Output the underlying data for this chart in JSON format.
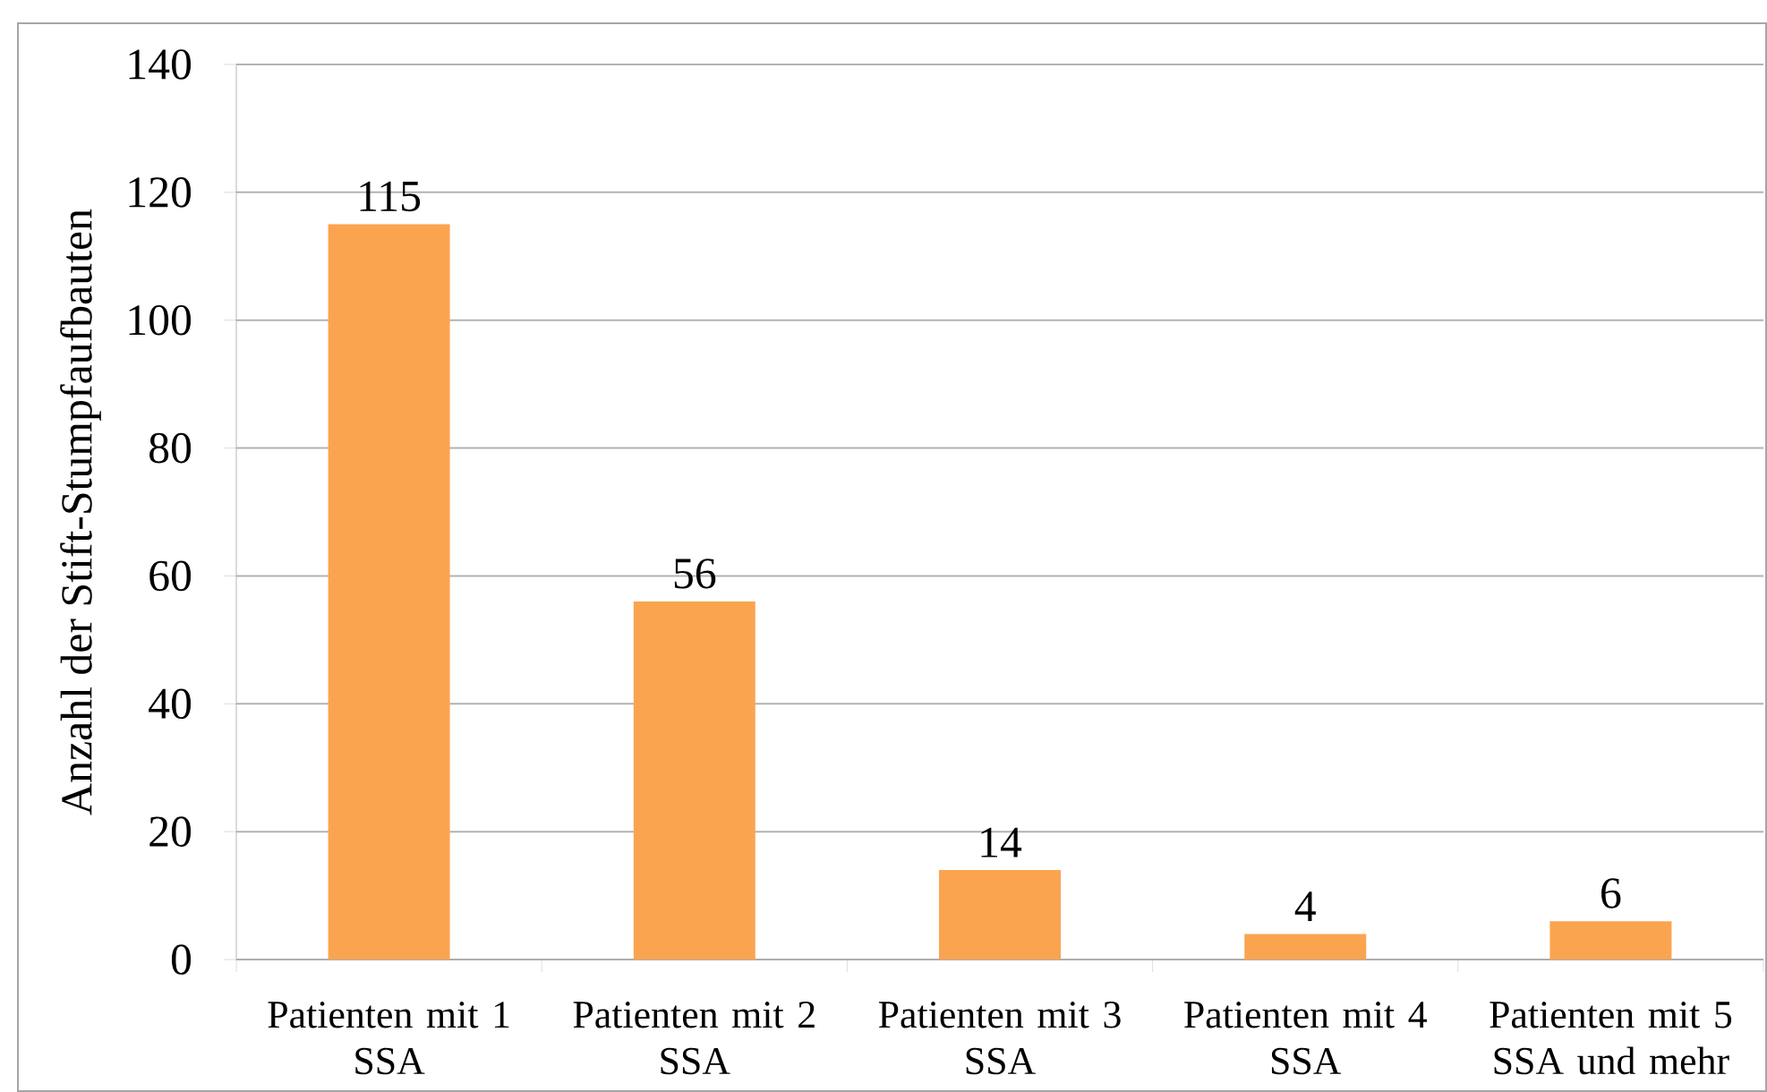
{
  "chart_data": {
    "type": "bar",
    "ylabel": "Anzahl der Stift-Stumpfaufbauten",
    "categories": [
      "Patienten mit 1 SSA",
      "Patienten mit 2 SSA",
      "Patienten mit 3 SSA",
      "Patienten mit 4 SSA",
      "Patienten mit 5 SSA und mehr"
    ],
    "values": [
      115,
      56,
      14,
      4,
      6
    ],
    "color": "#fba450",
    "ylim": [
      0,
      140
    ],
    "yticks": [
      0,
      20,
      40,
      60,
      80,
      100,
      120,
      140
    ],
    "grid": "y",
    "data_labels": true
  }
}
